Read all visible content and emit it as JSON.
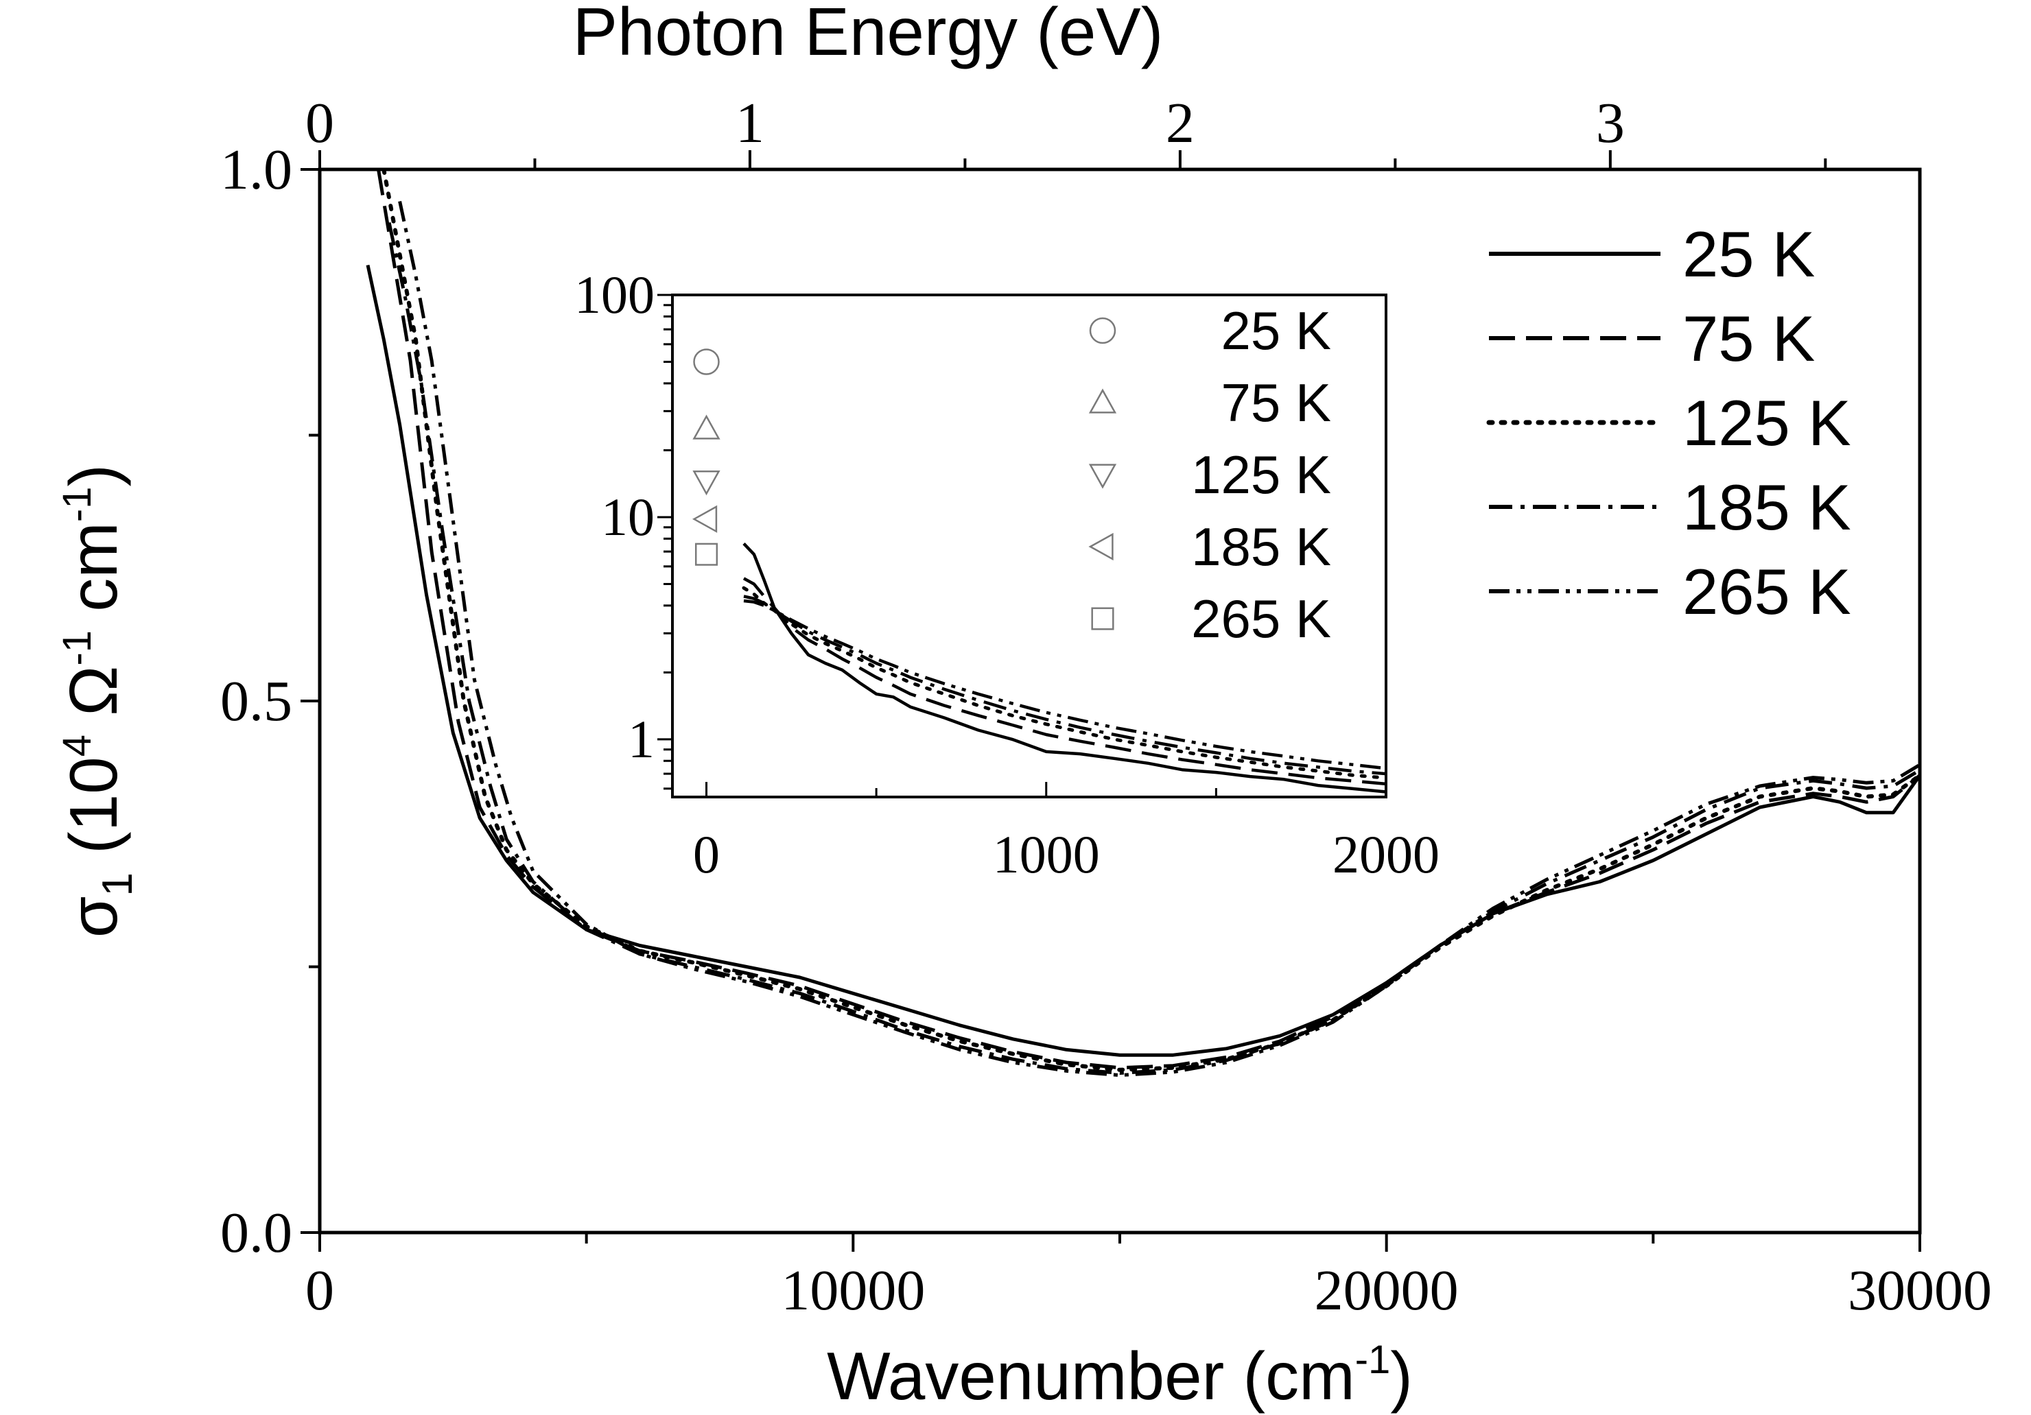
{
  "chart_data": [
    {
      "id": "main",
      "type": "line",
      "xlabel": "Wavenumber (cm-1)",
      "xlabel_parts": {
        "main": "Wavenumber (cm",
        "sup": "-1",
        "close": ")"
      },
      "x2label": "Photon Energy (eV)",
      "ylabel": "σ1 (10^4 Ω^-1 cm^-1)",
      "ylabel_parts": {
        "sigma": "σ",
        "sub": "1",
        "open": " (10",
        "sup4": "4",
        "omega": " Ω",
        "supm1a": "-1",
        "cm": " cm",
        "supm1b": "-1",
        "close": ")"
      },
      "xlim": [
        0,
        30000
      ],
      "ylim": [
        0.0,
        1.0
      ],
      "x2lim_eV": [
        0,
        3.7196
      ],
      "xticks": [
        0,
        10000,
        20000,
        30000
      ],
      "xtick_labels": [
        "0",
        "10000",
        "20000",
        "30000"
      ],
      "yticks": [
        0.0,
        0.5,
        1.0
      ],
      "ytick_labels": [
        "0.0",
        "0.5",
        "1.0"
      ],
      "x2ticks": [
        0,
        1,
        2,
        3
      ],
      "x2tick_labels": [
        "0",
        "1",
        "2",
        "3"
      ],
      "legend_position": "top-right",
      "series": [
        {
          "name": "25 K",
          "style": "solid",
          "x": [
            900,
            1200,
            1500,
            2000,
            2500,
            3000,
            3500,
            4000,
            5000,
            6000,
            7000,
            8000,
            9000,
            10000,
            11000,
            12000,
            13000,
            14000,
            15000,
            16000,
            17000,
            18000,
            19000,
            20000,
            21000,
            22000,
            23000,
            24000,
            25000,
            26000,
            27000,
            28000,
            28500,
            29000,
            29500,
            30000
          ],
          "y": [
            0.91,
            0.84,
            0.76,
            0.6,
            0.47,
            0.39,
            0.35,
            0.32,
            0.285,
            0.27,
            0.26,
            0.25,
            0.24,
            0.225,
            0.21,
            0.195,
            0.182,
            0.172,
            0.167,
            0.167,
            0.173,
            0.185,
            0.205,
            0.235,
            0.27,
            0.3,
            0.318,
            0.33,
            0.35,
            0.375,
            0.4,
            0.41,
            0.405,
            0.395,
            0.395,
            0.43
          ]
        },
        {
          "name": "75 K",
          "style": "dashed",
          "x": [
            1100,
            1400,
            1700,
            2100,
            2600,
            3000,
            3500,
            4000,
            5000,
            6000,
            7000,
            8000,
            9000,
            10000,
            11000,
            12000,
            13000,
            14000,
            15000,
            16000,
            17000,
            18000,
            19000,
            20000,
            21000,
            22000,
            23000,
            24000,
            25000,
            26000,
            27000,
            28000,
            28500,
            29000,
            29500,
            30000
          ],
          "y": [
            1.0,
            0.91,
            0.82,
            0.64,
            0.48,
            0.4,
            0.355,
            0.325,
            0.285,
            0.265,
            0.255,
            0.244,
            0.232,
            0.215,
            0.198,
            0.183,
            0.17,
            0.16,
            0.155,
            0.157,
            0.165,
            0.18,
            0.203,
            0.235,
            0.27,
            0.3,
            0.32,
            0.338,
            0.36,
            0.385,
            0.405,
            0.413,
            0.41,
            0.405,
            0.41,
            0.43
          ]
        },
        {
          "name": "125 K",
          "style": "dotted",
          "x": [
            1200,
            1500,
            1800,
            2200,
            2700,
            3100,
            3500,
            4000,
            5000,
            6000,
            7000,
            8000,
            9000,
            10000,
            11000,
            12000,
            13000,
            14000,
            15000,
            16000,
            17000,
            18000,
            19000,
            20000,
            21000,
            22000,
            23000,
            24000,
            25000,
            26000,
            27000,
            28000,
            28500,
            29000,
            29500,
            30000
          ],
          "y": [
            1.0,
            0.92,
            0.84,
            0.68,
            0.5,
            0.41,
            0.36,
            0.328,
            0.288,
            0.265,
            0.254,
            0.242,
            0.229,
            0.212,
            0.195,
            0.18,
            0.168,
            0.158,
            0.153,
            0.155,
            0.163,
            0.178,
            0.2,
            0.232,
            0.268,
            0.298,
            0.322,
            0.342,
            0.365,
            0.39,
            0.41,
            0.418,
            0.415,
            0.41,
            0.412,
            0.43
          ]
        },
        {
          "name": "185 K",
          "style": "dashdot",
          "x": [
            1300,
            1600,
            1900,
            2300,
            2800,
            3200,
            3500,
            4000,
            5000,
            6000,
            7000,
            8000,
            9000,
            10000,
            11000,
            12000,
            13000,
            14000,
            15000,
            16000,
            17000,
            18000,
            19000,
            20000,
            21000,
            22000,
            23000,
            24000,
            25000,
            26000,
            27000,
            28000,
            28500,
            29000,
            29500,
            30000
          ],
          "y": [
            0.95,
            0.88,
            0.8,
            0.66,
            0.5,
            0.42,
            0.37,
            0.33,
            0.285,
            0.262,
            0.25,
            0.238,
            0.225,
            0.208,
            0.19,
            0.175,
            0.163,
            0.154,
            0.15,
            0.153,
            0.162,
            0.178,
            0.2,
            0.233,
            0.27,
            0.302,
            0.328,
            0.35,
            0.372,
            0.398,
            0.418,
            0.425,
            0.422,
            0.418,
            0.42,
            0.435
          ]
        },
        {
          "name": "265 K",
          "style": "dashdotdot",
          "x": [
            1500,
            1800,
            2100,
            2500,
            2900,
            3300,
            3600,
            4000,
            5000,
            6000,
            7000,
            8000,
            9000,
            10000,
            11000,
            12000,
            13000,
            14000,
            15000,
            16000,
            17000,
            18000,
            19000,
            20000,
            21000,
            22000,
            23000,
            24000,
            25000,
            26000,
            27000,
            28000,
            28500,
            29000,
            29500,
            30000
          ],
          "y": [
            0.97,
            0.9,
            0.82,
            0.67,
            0.52,
            0.44,
            0.39,
            0.34,
            0.29,
            0.262,
            0.248,
            0.236,
            0.222,
            0.205,
            0.188,
            0.172,
            0.16,
            0.152,
            0.148,
            0.151,
            0.16,
            0.176,
            0.198,
            0.232,
            0.27,
            0.305,
            0.332,
            0.355,
            0.378,
            0.403,
            0.42,
            0.428,
            0.426,
            0.423,
            0.425,
            0.44
          ]
        }
      ]
    },
    {
      "id": "inset",
      "type": "line",
      "yscale": "log",
      "xlim": [
        -100,
        2000
      ],
      "ylim": [
        0.55,
        100
      ],
      "xticks": [
        0,
        1000,
        2000
      ],
      "xtick_labels": [
        "0",
        "1000",
        "2000"
      ],
      "yticks": [
        1,
        10,
        100
      ],
      "ytick_labels": [
        "1",
        "10",
        "100"
      ],
      "legend_position": "top-right",
      "markers": [
        {
          "name": "25 K",
          "symbol": "circle",
          "x": 0,
          "y": 50
        },
        {
          "name": "75 K",
          "symbol": "triangle-up",
          "x": 0,
          "y": 25
        },
        {
          "name": "125 K",
          "symbol": "triangle-down",
          "x": 0,
          "y": 14.5
        },
        {
          "name": "185 K",
          "symbol": "triangle-left",
          "x": 0,
          "y": 9.8
        },
        {
          "name": "265 K",
          "symbol": "square",
          "x": 0,
          "y": 6.8
        }
      ],
      "series": [
        {
          "name": "25 K",
          "style": "solid",
          "x": [
            110,
            140,
            170,
            200,
            250,
            300,
            350,
            400,
            450,
            500,
            550,
            600,
            700,
            800,
            900,
            1000,
            1100,
            1200,
            1300,
            1400,
            1500,
            1600,
            1700,
            1800,
            1900,
            2000
          ],
          "y": [
            7.6,
            6.8,
            5.2,
            3.9,
            3.0,
            2.4,
            2.2,
            2.05,
            1.8,
            1.6,
            1.55,
            1.4,
            1.25,
            1.1,
            1.0,
            0.88,
            0.86,
            0.82,
            0.78,
            0.73,
            0.71,
            0.68,
            0.66,
            0.62,
            0.6,
            0.58
          ]
        },
        {
          "name": "75 K",
          "style": "dashed",
          "x": [
            110,
            140,
            170,
            200,
            250,
            300,
            350,
            400,
            450,
            500,
            550,
            600,
            700,
            800,
            900,
            1000,
            1100,
            1200,
            1300,
            1400,
            1500,
            1600,
            1700,
            1800,
            1900,
            2000
          ],
          "y": [
            5.3,
            5.0,
            4.4,
            3.9,
            3.2,
            2.8,
            2.55,
            2.3,
            2.1,
            1.9,
            1.75,
            1.6,
            1.42,
            1.28,
            1.16,
            1.05,
            0.98,
            0.92,
            0.86,
            0.81,
            0.77,
            0.73,
            0.7,
            0.67,
            0.65,
            0.63
          ]
        },
        {
          "name": "125 K",
          "style": "dotted",
          "x": [
            110,
            140,
            170,
            200,
            250,
            300,
            350,
            400,
            450,
            500,
            550,
            600,
            700,
            800,
            900,
            1000,
            1100,
            1200,
            1300,
            1400,
            1500,
            1600,
            1700,
            1800,
            1900,
            2000
          ],
          "y": [
            4.8,
            4.5,
            4.1,
            3.8,
            3.3,
            2.95,
            2.7,
            2.5,
            2.3,
            2.1,
            1.95,
            1.8,
            1.6,
            1.42,
            1.28,
            1.17,
            1.08,
            1.0,
            0.94,
            0.88,
            0.83,
            0.79,
            0.75,
            0.72,
            0.69,
            0.67
          ]
        },
        {
          "name": "185 K",
          "style": "dashdot",
          "x": [
            110,
            140,
            170,
            200,
            250,
            300,
            350,
            400,
            450,
            500,
            550,
            600,
            700,
            800,
            900,
            1000,
            1100,
            1200,
            1300,
            1400,
            1500,
            1600,
            1700,
            1800,
            1900,
            2000
          ],
          "y": [
            4.4,
            4.3,
            4.1,
            3.8,
            3.4,
            3.05,
            2.8,
            2.6,
            2.4,
            2.2,
            2.05,
            1.9,
            1.68,
            1.5,
            1.35,
            1.23,
            1.13,
            1.05,
            0.98,
            0.92,
            0.87,
            0.82,
            0.78,
            0.75,
            0.72,
            0.7
          ]
        },
        {
          "name": "265 K",
          "style": "dashdotdot",
          "x": [
            110,
            140,
            170,
            200,
            250,
            300,
            350,
            400,
            450,
            500,
            550,
            600,
            700,
            800,
            900,
            1000,
            1100,
            1200,
            1300,
            1400,
            1500,
            1600,
            1700,
            1800,
            1900,
            2000
          ],
          "y": [
            4.2,
            4.15,
            4.0,
            3.8,
            3.45,
            3.15,
            2.9,
            2.7,
            2.5,
            2.3,
            2.15,
            2.0,
            1.78,
            1.6,
            1.45,
            1.32,
            1.22,
            1.13,
            1.06,
            0.99,
            0.93,
            0.88,
            0.84,
            0.8,
            0.77,
            0.74
          ]
        }
      ]
    }
  ]
}
